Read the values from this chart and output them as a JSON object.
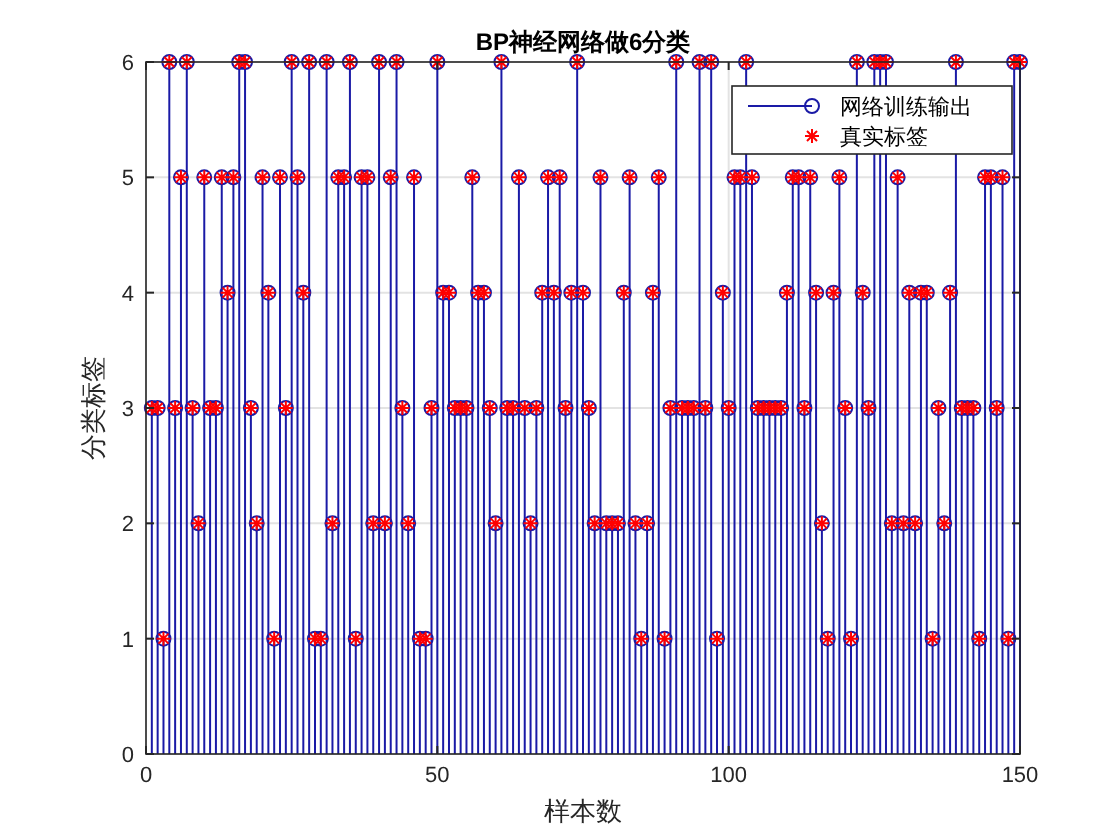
{
  "chart_data": {
    "type": "lollipop",
    "title": "BP神经网络做6分类",
    "xlabel": "样本数",
    "ylabel": "分类标签",
    "x": [
      1,
      2,
      3,
      4,
      5,
      6,
      7,
      8,
      9,
      10,
      11,
      12,
      13,
      14,
      15,
      16,
      17,
      18,
      19,
      20,
      21,
      22,
      23,
      24,
      25,
      26,
      27,
      28,
      29,
      30,
      31,
      32,
      33,
      34,
      35,
      36,
      37,
      38,
      39,
      40,
      41,
      42,
      43,
      44,
      45,
      46,
      47,
      48,
      49,
      50,
      51,
      52,
      53,
      54,
      55,
      56,
      57,
      58,
      59,
      60,
      61,
      62,
      63,
      64,
      65,
      66,
      67,
      68,
      69,
      70,
      71,
      72,
      73,
      74,
      75,
      76,
      77,
      78,
      79,
      80,
      81,
      82,
      83,
      84,
      85,
      86,
      87,
      88,
      89,
      90,
      91,
      92,
      93,
      94,
      95,
      96,
      97,
      98,
      99,
      100,
      101,
      102,
      103,
      104,
      105,
      106,
      107,
      108,
      109,
      110,
      111,
      112,
      113,
      114,
      115,
      116,
      117,
      118,
      119,
      120,
      121,
      122,
      123,
      124,
      125,
      126,
      127,
      128,
      129,
      130,
      131,
      132,
      133,
      134,
      135,
      136,
      137,
      138,
      139,
      140,
      141,
      142,
      143,
      144,
      145,
      146,
      147,
      148,
      149,
      150
    ],
    "series": [
      {
        "name": "网络训练输出",
        "color": "#1a1aa6",
        "marker": "circle",
        "values": [
          3,
          3,
          1,
          6,
          3,
          5,
          6,
          3,
          2,
          5,
          3,
          3,
          5,
          4,
          5,
          6,
          6,
          3,
          2,
          5,
          4,
          1,
          5,
          3,
          6,
          5,
          4,
          6,
          1,
          1,
          6,
          2,
          5,
          5,
          6,
          1,
          5,
          5,
          2,
          6,
          2,
          5,
          6,
          3,
          2,
          5,
          1,
          1,
          3,
          6,
          4,
          4,
          3,
          3,
          3,
          5,
          4,
          4,
          3,
          2,
          6,
          3,
          3,
          5,
          3,
          2,
          3,
          4,
          5,
          4,
          5,
          3,
          4,
          6,
          4,
          3,
          2,
          5,
          2,
          2,
          2,
          4,
          5,
          2,
          1,
          2,
          4,
          5,
          1,
          3,
          6,
          3,
          3,
          3,
          6,
          3,
          6,
          1,
          4,
          3,
          5,
          5,
          6,
          5,
          3,
          3,
          3,
          3,
          3,
          4,
          5,
          5,
          3,
          5,
          4,
          2,
          1,
          4,
          5,
          3,
          1,
          6,
          4,
          3,
          6,
          6,
          6,
          2,
          5,
          2,
          4,
          2,
          4,
          4,
          1,
          3,
          2,
          4,
          6,
          3,
          3,
          3,
          1,
          5,
          5,
          3,
          5,
          1,
          6,
          6
        ]
      },
      {
        "name": "真实标签",
        "type": "scatter",
        "color": "#ff0000",
        "marker": "cross",
        "values": [
          3,
          3,
          1,
          6,
          3,
          5,
          6,
          3,
          2,
          5,
          3,
          3,
          5,
          4,
          5,
          6,
          6,
          3,
          2,
          5,
          4,
          1,
          5,
          3,
          6,
          5,
          4,
          6,
          1,
          1,
          6,
          2,
          5,
          5,
          6,
          1,
          5,
          5,
          2,
          6,
          2,
          5,
          6,
          3,
          2,
          5,
          1,
          1,
          3,
          6,
          4,
          4,
          3,
          3,
          3,
          5,
          4,
          4,
          3,
          2,
          6,
          3,
          3,
          5,
          3,
          2,
          3,
          4,
          5,
          4,
          5,
          3,
          4,
          6,
          4,
          3,
          2,
          5,
          2,
          2,
          2,
          4,
          5,
          2,
          1,
          2,
          4,
          5,
          1,
          3,
          6,
          3,
          3,
          3,
          6,
          3,
          6,
          1,
          4,
          3,
          5,
          5,
          6,
          5,
          3,
          3,
          3,
          3,
          3,
          4,
          5,
          5,
          3,
          5,
          4,
          2,
          1,
          4,
          5,
          3,
          1,
          6,
          4,
          3,
          6,
          6,
          6,
          2,
          5,
          2,
          4,
          2,
          4,
          4,
          1,
          3,
          2,
          4,
          6,
          3,
          3,
          3,
          1,
          5,
          5,
          3,
          5,
          1,
          6,
          6
        ]
      }
    ],
    "xlim": [
      0,
      150
    ],
    "xticks": [
      0,
      50,
      100,
      150
    ],
    "ylim": [
      0,
      6
    ],
    "yticks": [
      0,
      1,
      2,
      3,
      4,
      5,
      6
    ],
    "grid": true,
    "legend": "top right"
  }
}
